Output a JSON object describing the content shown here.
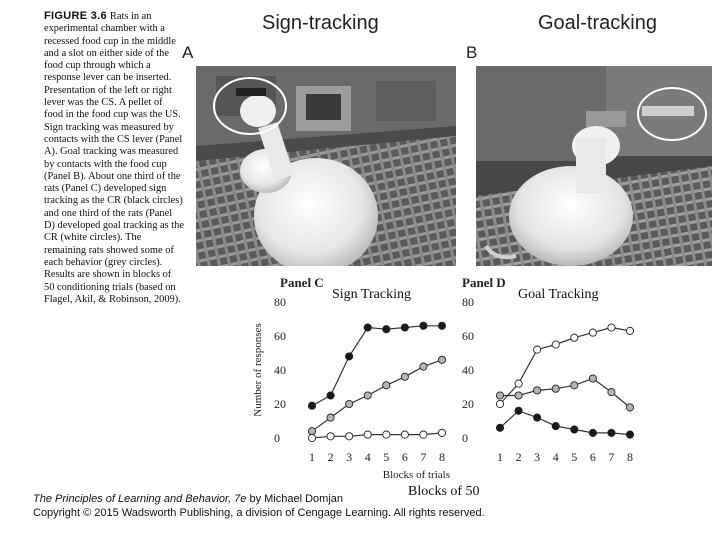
{
  "figure": {
    "label": "FIGURE 3.6",
    "caption": "Rats in an experimental chamber with a recessed food cup in the middle and a slot on either side of the food cup through which a response lever can be inserted. Presentation of the left or right lever was the CS. A pellet of food in the food cup was the US. Sign tracking was measured by contacts with the CS lever (Panel A). Goal tracking was measured by contacts with the food cup (Panel B). About one third of the rats (Panel C) developed sign tracking as the CR (black circles) and one third of the rats (Panel D) developed goal tracking as the CR (white circles). The remaining rats showed some of each behavior (grey circles). Results are shown in blocks of 50 conditioning trials (based on Flagel, Akil, & Robinson, 2009)."
  },
  "photos": {
    "left_title": "Sign-tracking",
    "right_title": "Goal-tracking",
    "left_letter": "A",
    "right_letter": "B"
  },
  "overlay": {
    "sign_label": "Sign Tracking",
    "goal_label": "Goal Tracking",
    "blocks_label": "Blocks of 50"
  },
  "footer": {
    "book_title": "The Principles of Learning and Behavior, 7e",
    "author": " by Michael Domjan",
    "copyright": "Copyright © 2015 Wadsworth Publishing, a division of Cengage Learning. All rights reserved."
  },
  "colors": {
    "black": "#1a1a1a",
    "grey": "#b5b5b5",
    "white": "#ffffff",
    "line": "#333333"
  },
  "chart_data": [
    {
      "type": "line",
      "title": "Panel C",
      "xlabel": "Blocks of trials",
      "ylabel": "Number of responses",
      "x": [
        1,
        2,
        3,
        4,
        5,
        6,
        7,
        8
      ],
      "ylim": [
        0,
        80
      ],
      "yticks": [
        0,
        20,
        40,
        60,
        80
      ],
      "series": [
        {
          "marker": "black",
          "values": [
            19,
            25,
            48,
            65,
            64,
            65,
            66,
            66
          ]
        },
        {
          "marker": "grey",
          "values": [
            4,
            12,
            20,
            25,
            31,
            36,
            42,
            46
          ]
        },
        {
          "marker": "white",
          "values": [
            0,
            1,
            1,
            2,
            2,
            2,
            2,
            3
          ]
        }
      ]
    },
    {
      "type": "line",
      "title": "Panel D",
      "xlabel": "",
      "ylabel": "",
      "x": [
        1,
        2,
        3,
        4,
        5,
        6,
        7,
        8
      ],
      "ylim": [
        0,
        80
      ],
      "yticks": [
        0,
        20,
        40,
        60,
        80
      ],
      "series": [
        {
          "marker": "white",
          "values": [
            20,
            32,
            52,
            55,
            59,
            62,
            65,
            63
          ]
        },
        {
          "marker": "grey",
          "values": [
            25,
            25,
            28,
            29,
            31,
            35,
            27,
            18
          ]
        },
        {
          "marker": "black",
          "values": [
            6,
            16,
            12,
            7,
            5,
            3,
            3,
            2
          ]
        }
      ]
    }
  ]
}
